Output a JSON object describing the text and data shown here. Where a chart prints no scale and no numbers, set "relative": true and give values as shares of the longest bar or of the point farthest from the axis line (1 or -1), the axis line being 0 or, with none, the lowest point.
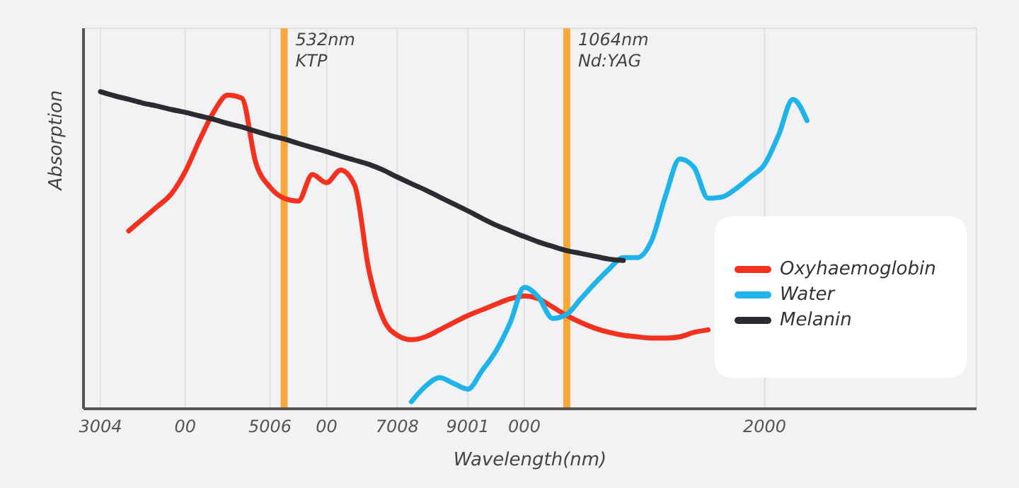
{
  "chart_data": {
    "type": "line",
    "xlabel": "Wavelength(nm)",
    "ylabel": "Absorption",
    "relative": true,
    "categories": [
      null,
      "3004",
      null,
      null,
      null,
      null,
      null,
      "00",
      null,
      null,
      null,
      null,
      null,
      "5006",
      null,
      null,
      null,
      "00",
      null,
      null,
      null,
      null,
      "7008",
      null,
      null,
      null,
      null,
      "9001",
      null,
      null,
      null,
      "000",
      null,
      null,
      null,
      null,
      null,
      null,
      null,
      null,
      null,
      null,
      null,
      null,
      null,
      null,
      null,
      null,
      "2000",
      null,
      null,
      null,
      null,
      null,
      null,
      null,
      null,
      null,
      null,
      null,
      null,
      null,
      null,
      null
    ],
    "grid": true,
    "legend": "right",
    "marker": "none",
    "line_style": "solid",
    "annotations": [
      "532nm\nKTP",
      "1064nm\nNd:YAG"
    ],
    "series": [
      {
        "name": "Oxyhaemoglobin",
        "color": "#f2311f",
        "values": [
          null,
          null,
          null,
          0.561,
          0.599,
          0.637,
          0.677,
          0.748,
          0.846,
          0.935,
          0.989,
          0.98,
          0.775,
          0.699,
          0.664,
          0.655,
          0.739,
          0.713,
          0.753,
          0.704,
          0.437,
          0.285,
          0.232,
          0.218,
          0.227,
          0.249,
          0.272,
          0.294,
          0.312,
          0.33,
          0.347,
          0.356,
          0.347,
          0.321,
          0.294,
          0.272,
          0.254,
          0.241,
          0.232,
          0.227,
          0.223,
          0.223,
          0.227,
          0.241,
          0.249,
          null,
          null,
          null,
          null,
          null,
          null,
          null,
          null,
          null,
          null,
          null,
          null,
          null,
          null,
          null,
          null,
          null,
          null,
          null
        ]
      },
      {
        "name": "Water",
        "color": "#1eb4ea",
        "values": [
          null,
          null,
          null,
          null,
          null,
          null,
          null,
          null,
          null,
          null,
          null,
          null,
          null,
          null,
          null,
          null,
          null,
          null,
          null,
          null,
          null,
          null,
          null,
          0.022,
          0.071,
          0.098,
          0.08,
          0.062,
          0.12,
          0.183,
          0.272,
          0.383,
          0.352,
          0.285,
          0.298,
          0.347,
          0.396,
          0.441,
          0.477,
          0.477,
          0.53,
          0.673,
          0.788,
          0.762,
          0.664,
          0.668,
          0.695,
          0.731,
          0.771,
          0.864,
          0.976,
          0.909,
          null,
          null,
          null,
          null,
          null,
          null,
          null,
          null,
          null,
          null,
          null,
          null
        ]
      },
      {
        "name": "Melanin",
        "color": "#2b2b30",
        "values": [
          null,
          1,
          0.987,
          0.976,
          0.964,
          0.955,
          0.944,
          0.935,
          0.924,
          0.913,
          0.9,
          0.889,
          0.875,
          0.862,
          0.851,
          0.837,
          0.824,
          0.811,
          0.797,
          0.784,
          0.771,
          0.753,
          0.731,
          0.71,
          0.69,
          0.668,
          0.646,
          0.624,
          0.601,
          0.579,
          0.561,
          0.543,
          0.526,
          0.512,
          0.499,
          0.49,
          0.481,
          0.472,
          0.468,
          null,
          null,
          null,
          null,
          null,
          null,
          null,
          null,
          null,
          null,
          null,
          null,
          null,
          null,
          null,
          null,
          null,
          null,
          null,
          null,
          null,
          null,
          null,
          null,
          null
        ]
      }
    ]
  }
}
